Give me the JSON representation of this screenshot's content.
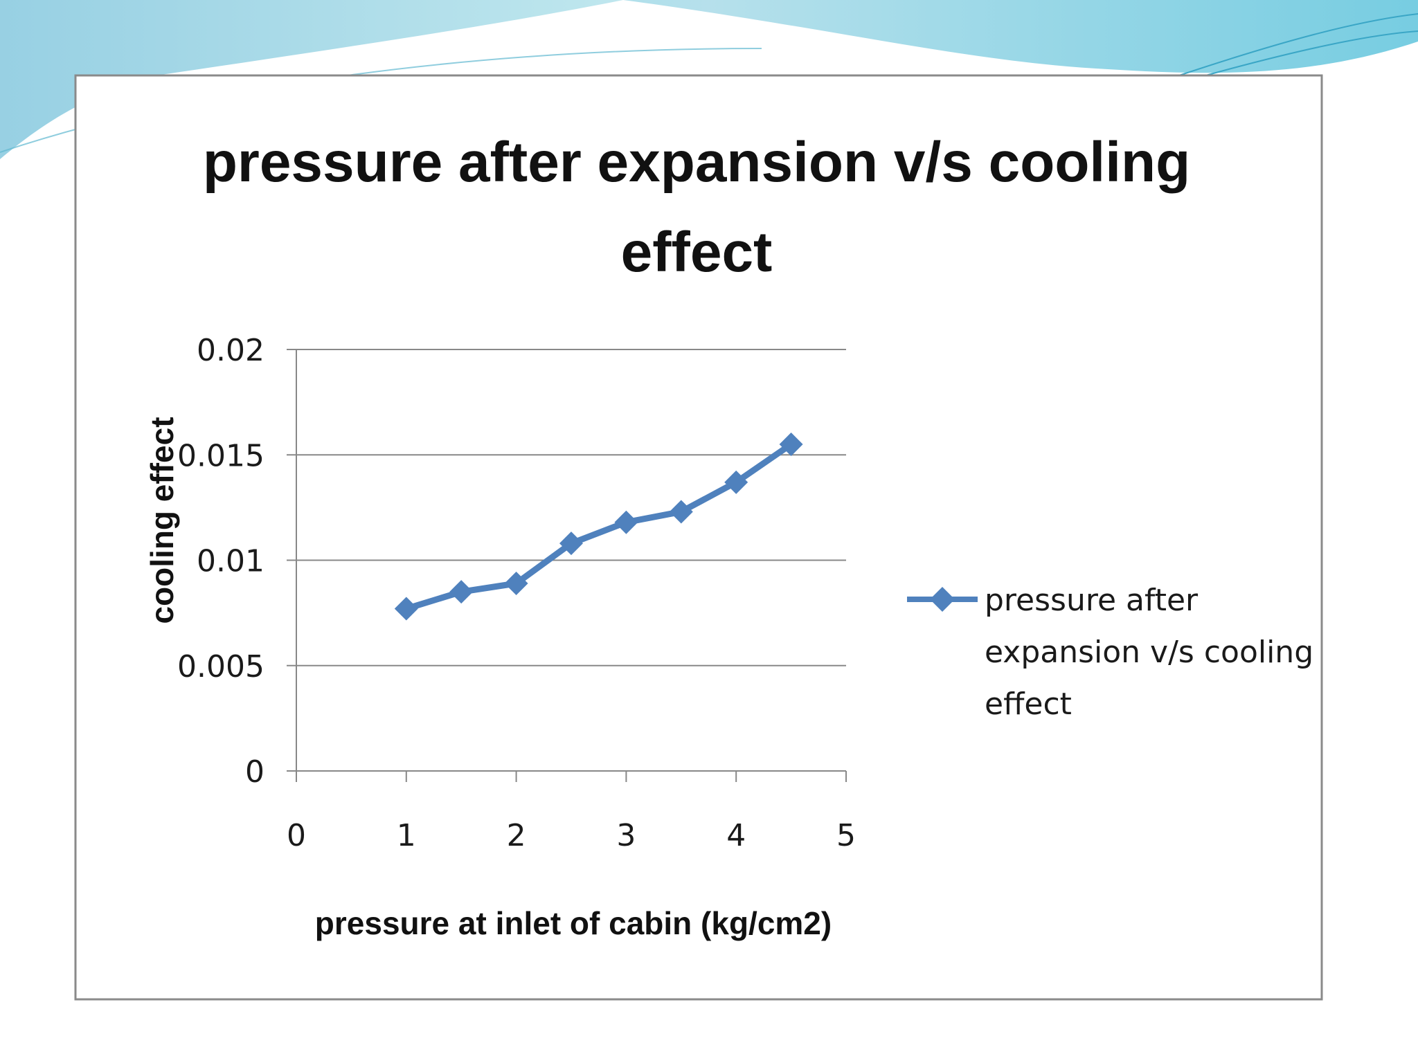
{
  "chart_data": {
    "type": "line",
    "title_lines": [
      "pressure after expansion v/s cooling",
      "effect"
    ],
    "xlabel": "pressure at inlet of cabin (kg/cm2)",
    "ylabel": "cooling effect",
    "xlim": [
      0,
      5
    ],
    "ylim": [
      0,
      0.02
    ],
    "x_ticks": [
      "0",
      "1",
      "2",
      "3",
      "4",
      "5"
    ],
    "y_ticks": [
      "0",
      "0.005",
      "0.01",
      "0.015",
      "0.02"
    ],
    "grid": "horizontal",
    "legend_position": "right",
    "series": [
      {
        "name_lines": [
          "pressure after",
          "expansion v/s cooling",
          "effect"
        ],
        "color": "#4f81bd",
        "marker": "diamond",
        "x": [
          1,
          1.5,
          2,
          2.5,
          3,
          3.5,
          4,
          4.5
        ],
        "y": [
          0.0077,
          0.0085,
          0.0089,
          0.0108,
          0.0118,
          0.0123,
          0.0137,
          0.0155
        ]
      }
    ]
  },
  "colors": {
    "line": "#4f81bd",
    "gridline": "#888888",
    "frame_border": "#8a8a8a",
    "decor_teal": "#7fd3e0"
  }
}
